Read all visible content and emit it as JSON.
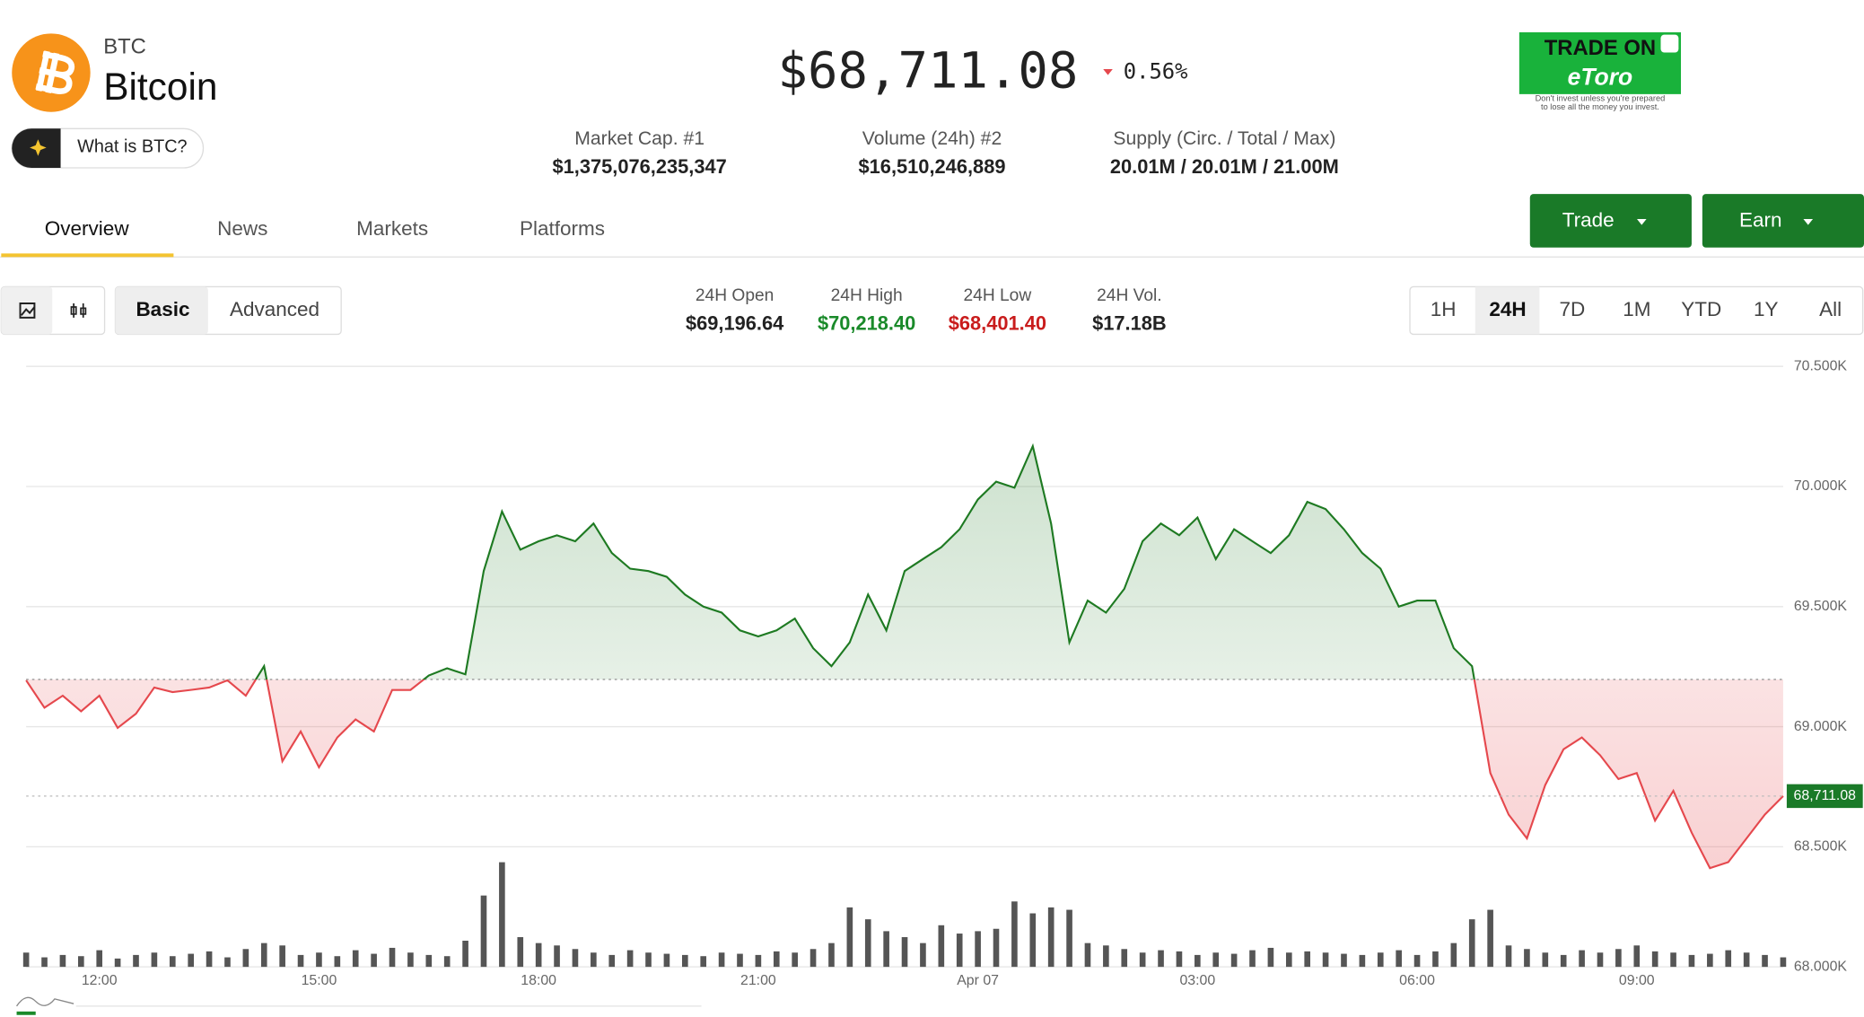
{
  "header": {
    "symbol": "BTC",
    "name": "Bitcoin",
    "what_is": "What is BTC?",
    "price": "$68,711.08",
    "change": "0.56%"
  },
  "stats": [
    {
      "label": "Market Cap. #1",
      "value": "$1,375,076,235,347"
    },
    {
      "label": "Volume (24h) #2",
      "value": "$16,510,246,889"
    },
    {
      "label": "Supply (Circ. / Total / Max)",
      "value": "20.01M / 20.01M / 21.00M"
    }
  ],
  "ad": {
    "line1": "TRADE ON",
    "brand": "eToro",
    "disclaimer": [
      "Don't invest unless you're prepared",
      "to lose all the money you invest."
    ]
  },
  "tabs": [
    "Overview",
    "News",
    "Markets",
    "Platforms"
  ],
  "buttons": [
    "Trade",
    "Earn"
  ],
  "modes": [
    "Basic",
    "Advanced"
  ],
  "ranges": [
    "1H",
    "24H",
    "7D",
    "1M",
    "YTD",
    "1Y",
    "All"
  ],
  "day_stats": [
    {
      "label": "24H Open",
      "value": "$69,196.64"
    },
    {
      "label": "24H High",
      "value": "$70,218.40"
    },
    {
      "label": "24H Low",
      "value": "$68,401.40"
    },
    {
      "label": "24H Vol.",
      "value": "$17.18B"
    }
  ],
  "chart_data": {
    "type": "line",
    "values": [
      69193,
      69079,
      69129,
      69064,
      69129,
      68995,
      69054,
      69163,
      69144,
      69153,
      69163,
      69193,
      69129,
      69252,
      68856,
      68980,
      68831,
      68955,
      69030,
      68980,
      69153,
      69153,
      69213,
      69243,
      69218,
      69648,
      69896,
      69737,
      69772,
      69797,
      69772,
      69846,
      69723,
      69658,
      69648,
      69624,
      69550,
      69500,
      69475,
      69401,
      69376,
      69401,
      69450,
      69327,
      69252,
      69351,
      69550,
      69401,
      69648,
      69698,
      69747,
      69822,
      69946,
      70020,
      69995,
      70168,
      69846,
      69351,
      69525,
      69475,
      69574,
      69772,
      69846,
      69797,
      69871,
      69698,
      69822,
      69772,
      69723,
      69797,
      69936,
      69906,
      69822,
      69723,
      69658,
      69500,
      69525,
      69525,
      69327,
      69252,
      68807,
      68634,
      68535,
      68757,
      68906,
      68955,
      68881,
      68782,
      68807,
      68609,
      68733,
      68559,
      68411,
      68436,
      68535,
      68634,
      68711.08
    ],
    "volumes": [
      12,
      8,
      10,
      9,
      14,
      7,
      10,
      12,
      9,
      11,
      13,
      8,
      15,
      20,
      18,
      10,
      12,
      9,
      14,
      11,
      16,
      12,
      10,
      9,
      22,
      60,
      88,
      25,
      20,
      18,
      15,
      12,
      10,
      14,
      12,
      11,
      10,
      9,
      12,
      11,
      10,
      13,
      12,
      15,
      20,
      50,
      40,
      30,
      25,
      20,
      35,
      28,
      30,
      32,
      55,
      45,
      50,
      48,
      20,
      18,
      15,
      12,
      14,
      13,
      10,
      12,
      11,
      14,
      16,
      12,
      13,
      12,
      11,
      10,
      12,
      14,
      10,
      13,
      20,
      40,
      48,
      18,
      15,
      12,
      10,
      14,
      12,
      15,
      18,
      13,
      12,
      10,
      11,
      14,
      12,
      10,
      8
    ],
    "baseline": 69196.64,
    "last_value_label": "68,711.08",
    "ylim": [
      68000,
      70500
    ],
    "yticks": [
      {
        "value": 68000,
        "label": "68.000K"
      },
      {
        "value": 68500,
        "label": "68.500K"
      },
      {
        "value": 69000,
        "label": "69.000K"
      },
      {
        "value": 69500,
        "label": "69.500K"
      },
      {
        "value": 70000,
        "label": "70.000K"
      },
      {
        "value": 70500,
        "label": "70.500K"
      }
    ],
    "xticks": [
      {
        "value": 4,
        "label": "12:00"
      },
      {
        "value": 16,
        "label": "15:00"
      },
      {
        "value": 28,
        "label": "18:00"
      },
      {
        "value": 40,
        "label": "21:00"
      },
      {
        "value": 52,
        "label": "Apr 07"
      },
      {
        "value": 64,
        "label": "03:00"
      },
      {
        "value": 76,
        "label": "06:00"
      },
      {
        "value": 88,
        "label": "09:00"
      }
    ],
    "colors": {
      "up": "#1e7a22",
      "down": "#e5484d",
      "volume": "#555555"
    },
    "grid": true
  }
}
